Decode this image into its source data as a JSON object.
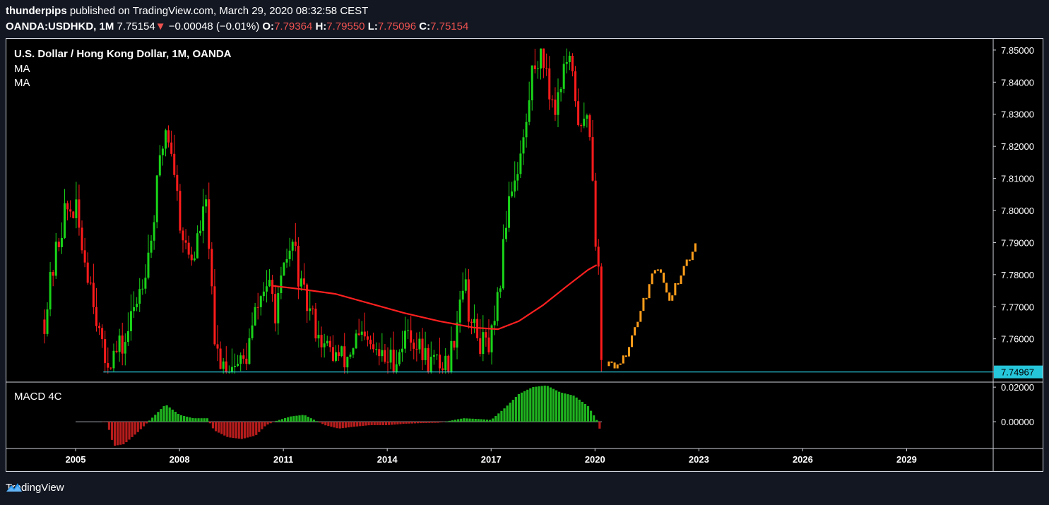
{
  "header": {
    "author": "thunderpips",
    "published_text": "published on TradingView.com, March 29, 2020 08:32:58 CEST",
    "symbol": "OANDA:USDHKD, 1M",
    "last": "7.75154",
    "arrow": "▼",
    "change": "−0.00048 (−0.01%)",
    "o_label": "O:",
    "o_value": "7.79364",
    "h_label": "H:",
    "h_value": "7.79550",
    "l_label": "L:",
    "l_value": "7.75096",
    "c_label": "C:",
    "c_value": "7.75154"
  },
  "legend": {
    "title": "U.S. Dollar / Hong Kong Dollar, 1M, OANDA",
    "ma1": "MA",
    "ma2": "MA",
    "macd": "MACD 4C"
  },
  "footer": {
    "brand": "TradingView",
    "logo_icon": "tradingview-logo-icon"
  },
  "colors": {
    "up": "#19d319",
    "down": "#ff1b1b",
    "projection": "#ff9e1b",
    "ma": "#ff2020",
    "support": "#26c6da",
    "macd_up": "#1fb31f",
    "macd_down": "#b71c1c"
  },
  "chart_data": {
    "type": "candlestick",
    "x_axis": {
      "ticks": [
        "2005",
        "2008",
        "2011",
        "2014",
        "2017",
        "2020",
        "2023",
        "2026",
        "2029"
      ],
      "range": [
        2003.0,
        2031.5
      ]
    },
    "y_axis": {
      "ticks": [
        "7.85000",
        "7.84000",
        "7.83000",
        "7.82000",
        "7.81000",
        "7.80000",
        "7.79000",
        "7.78000",
        "7.77000",
        "7.76000"
      ],
      "range": [
        7.7465,
        7.8535
      ],
      "last_price_label": "7.74967"
    },
    "support_level": {
      "value": 7.74967,
      "from_year": 2005.8
    },
    "price_path": [
      [
        2004.1,
        7.766
      ],
      [
        2004.4,
        7.785
      ],
      [
        2004.7,
        7.8
      ],
      [
        2005.0,
        7.8
      ],
      [
        2005.2,
        7.788
      ],
      [
        2005.5,
        7.775
      ],
      [
        2005.8,
        7.753
      ],
      [
        2006.1,
        7.755
      ],
      [
        2006.4,
        7.758
      ],
      [
        2006.7,
        7.77
      ],
      [
        2006.9,
        7.778
      ],
      [
        2007.2,
        7.792
      ],
      [
        2007.4,
        7.812
      ],
      [
        2007.6,
        7.826
      ],
      [
        2007.8,
        7.818
      ],
      [
        2008.0,
        7.798
      ],
      [
        2008.2,
        7.787
      ],
      [
        2008.4,
        7.785
      ],
      [
        2008.6,
        7.795
      ],
      [
        2008.8,
        7.802
      ],
      [
        2009.0,
        7.757
      ],
      [
        2009.3,
        7.752
      ],
      [
        2009.6,
        7.752
      ],
      [
        2009.9,
        7.753
      ],
      [
        2010.2,
        7.768
      ],
      [
        2010.5,
        7.778
      ],
      [
        2010.8,
        7.768
      ],
      [
        2011.1,
        7.785
      ],
      [
        2011.3,
        7.79
      ],
      [
        2011.5,
        7.775
      ],
      [
        2011.7,
        7.77
      ],
      [
        2011.9,
        7.765
      ],
      [
        2012.2,
        7.757
      ],
      [
        2012.5,
        7.755
      ],
      [
        2012.8,
        7.753
      ],
      [
        2013.1,
        7.76
      ],
      [
        2013.4,
        7.758
      ],
      [
        2013.7,
        7.755
      ],
      [
        2014.0,
        7.753
      ],
      [
        2014.3,
        7.755
      ],
      [
        2014.6,
        7.763
      ],
      [
        2014.9,
        7.757
      ],
      [
        2015.2,
        7.753
      ],
      [
        2015.5,
        7.752
      ],
      [
        2015.8,
        7.753
      ],
      [
        2016.0,
        7.766
      ],
      [
        2016.2,
        7.78
      ],
      [
        2016.4,
        7.766
      ],
      [
        2016.6,
        7.76
      ],
      [
        2016.9,
        7.757
      ],
      [
        2017.1,
        7.762
      ],
      [
        2017.3,
        7.782
      ],
      [
        2017.5,
        7.805
      ],
      [
        2017.8,
        7.815
      ],
      [
        2018.0,
        7.825
      ],
      [
        2018.2,
        7.845
      ],
      [
        2018.4,
        7.849
      ],
      [
        2018.6,
        7.845
      ],
      [
        2018.8,
        7.83
      ],
      [
        2019.0,
        7.84
      ],
      [
        2019.2,
        7.847
      ],
      [
        2019.4,
        7.838
      ],
      [
        2019.6,
        7.823
      ],
      [
        2019.8,
        7.832
      ],
      [
        2019.9,
        7.82
      ],
      [
        2020.0,
        7.795
      ],
      [
        2020.1,
        7.78
      ],
      [
        2020.2,
        7.752
      ]
    ],
    "projection_path": [
      [
        2020.4,
        7.7515
      ],
      [
        2020.6,
        7.7508
      ],
      [
        2020.8,
        7.7535
      ],
      [
        2021.0,
        7.758
      ],
      [
        2021.2,
        7.765
      ],
      [
        2021.4,
        7.772
      ],
      [
        2021.6,
        7.778
      ],
      [
        2021.8,
        7.782
      ],
      [
        2022.0,
        7.776
      ],
      [
        2022.2,
        7.772
      ],
      [
        2022.4,
        7.779
      ],
      [
        2022.6,
        7.783
      ],
      [
        2022.8,
        7.786
      ],
      [
        2022.95,
        7.79
      ]
    ],
    "series": [
      {
        "name": "MA",
        "type": "line",
        "points": [
          [
            2010.7,
            7.7765
          ],
          [
            2011.5,
            7.7755
          ],
          [
            2012.5,
            7.774
          ],
          [
            2013.5,
            7.771
          ],
          [
            2014.5,
            7.768
          ],
          [
            2015.5,
            7.7655
          ],
          [
            2016.5,
            7.7635
          ],
          [
            2017.2,
            7.763
          ],
          [
            2017.8,
            7.7655
          ],
          [
            2018.5,
            7.7705
          ],
          [
            2019.2,
            7.7765
          ],
          [
            2019.8,
            7.7815
          ],
          [
            2020.05,
            7.783
          ]
        ]
      }
    ],
    "macd": {
      "type": "histogram",
      "name": "MACD 4C",
      "y_ticks": [
        "0.02000",
        "0.00000"
      ],
      "y_range": [
        -0.0155,
        0.0225
      ],
      "values": [
        [
          2005.0,
          0
        ],
        [
          2005.9,
          -0.0001
        ],
        [
          2006.1,
          -0.014
        ],
        [
          2006.4,
          -0.013
        ],
        [
          2006.8,
          -0.006
        ],
        [
          2007.2,
          0.002
        ],
        [
          2007.6,
          0.01
        ],
        [
          2008.0,
          0.004
        ],
        [
          2008.4,
          0.002
        ],
        [
          2008.8,
          0.002
        ],
        [
          2009.0,
          -0.005
        ],
        [
          2009.4,
          -0.009
        ],
        [
          2009.8,
          -0.01
        ],
        [
          2010.2,
          -0.008
        ],
        [
          2010.5,
          -0.002
        ],
        [
          2010.8,
          0.0005
        ],
        [
          2011.2,
          0.003
        ],
        [
          2011.6,
          0.004
        ],
        [
          2011.9,
          0.001
        ],
        [
          2012.2,
          -0.002
        ],
        [
          2012.6,
          -0.004
        ],
        [
          2013.0,
          -0.003
        ],
        [
          2013.5,
          -0.002
        ],
        [
          2014.0,
          -0.002
        ],
        [
          2014.5,
          -0.0012
        ],
        [
          2015.0,
          -0.0008
        ],
        [
          2015.5,
          -0.0006
        ],
        [
          2015.8,
          0.0005
        ],
        [
          2016.2,
          0.002
        ],
        [
          2016.7,
          0.0015
        ],
        [
          2017.0,
          0.001
        ],
        [
          2017.4,
          0.008
        ],
        [
          2017.8,
          0.016
        ],
        [
          2018.2,
          0.02
        ],
        [
          2018.6,
          0.021
        ],
        [
          2019.0,
          0.017
        ],
        [
          2019.4,
          0.015
        ],
        [
          2019.8,
          0.009
        ],
        [
          2020.05,
          0.001
        ],
        [
          2020.2,
          -0.008
        ]
      ]
    }
  }
}
